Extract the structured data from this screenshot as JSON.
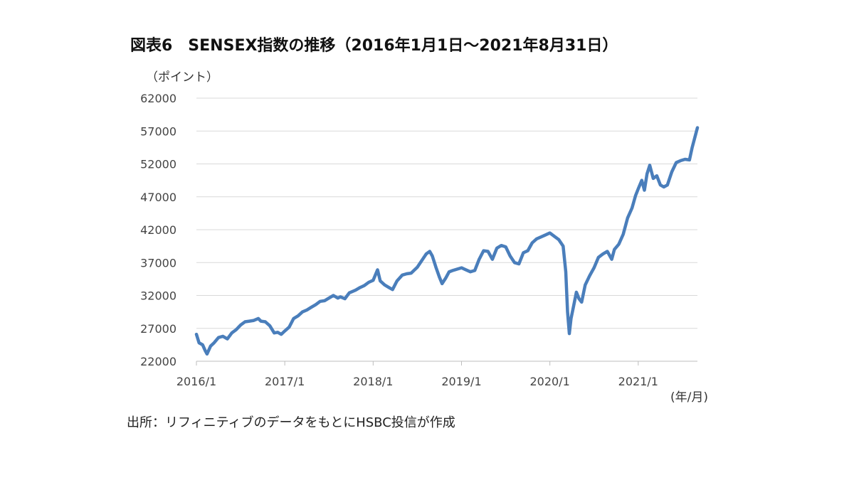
{
  "figure": {
    "title": "図表6　SENSEX指数の推移（2016年1月1日～2021年8月31日）",
    "unit_label": "（ポイント）",
    "x_unit_label": "(年/月)",
    "source": "出所：リフィニティブのデータをもとにHSBC投信が作成"
  },
  "chart_data": {
    "type": "line",
    "title": "SENSEX指数の推移（2016年1月1日～2021年8月31日）",
    "xlabel": "(年/月)",
    "ylabel": "（ポイント）",
    "ylim": [
      22000,
      62000
    ],
    "y_ticks": [
      22000,
      27000,
      32000,
      37000,
      42000,
      47000,
      52000,
      57000,
      62000
    ],
    "x_tick_labels": [
      "2016/1",
      "2017/1",
      "2018/1",
      "2019/1",
      "2020/1",
      "2021/1"
    ],
    "x_tick_values": [
      2016.0,
      2017.0,
      2018.0,
      2019.0,
      2020.0,
      2021.0
    ],
    "xlim": [
      2016.0,
      2021.67
    ],
    "grid": "horizontal",
    "line_color": "#4a7ebb",
    "series": [
      {
        "values": [
          [
            2016.0,
            26100
          ],
          [
            2016.03,
            24800
          ],
          [
            2016.07,
            24500
          ],
          [
            2016.1,
            23600
          ],
          [
            2016.12,
            23100
          ],
          [
            2016.16,
            24300
          ],
          [
            2016.2,
            24800
          ],
          [
            2016.25,
            25600
          ],
          [
            2016.3,
            25800
          ],
          [
            2016.35,
            25400
          ],
          [
            2016.4,
            26300
          ],
          [
            2016.45,
            26800
          ],
          [
            2016.5,
            27500
          ],
          [
            2016.55,
            28000
          ],
          [
            2016.6,
            28100
          ],
          [
            2016.65,
            28200
          ],
          [
            2016.7,
            28500
          ],
          [
            2016.73,
            28100
          ],
          [
            2016.78,
            28000
          ],
          [
            2016.83,
            27400
          ],
          [
            2016.88,
            26300
          ],
          [
            2016.92,
            26400
          ],
          [
            2016.96,
            26100
          ],
          [
            2017.0,
            26600
          ],
          [
            2017.05,
            27200
          ],
          [
            2017.1,
            28500
          ],
          [
            2017.15,
            28900
          ],
          [
            2017.2,
            29500
          ],
          [
            2017.25,
            29800
          ],
          [
            2017.3,
            30200
          ],
          [
            2017.35,
            30600
          ],
          [
            2017.4,
            31100
          ],
          [
            2017.45,
            31200
          ],
          [
            2017.5,
            31600
          ],
          [
            2017.55,
            32000
          ],
          [
            2017.6,
            31600
          ],
          [
            2017.63,
            31800
          ],
          [
            2017.68,
            31500
          ],
          [
            2017.73,
            32400
          ],
          [
            2017.8,
            32800
          ],
          [
            2017.85,
            33200
          ],
          [
            2017.9,
            33500
          ],
          [
            2017.95,
            34000
          ],
          [
            2018.0,
            34300
          ],
          [
            2018.05,
            35900
          ],
          [
            2018.08,
            34200
          ],
          [
            2018.13,
            33600
          ],
          [
            2018.18,
            33200
          ],
          [
            2018.22,
            32900
          ],
          [
            2018.27,
            34200
          ],
          [
            2018.33,
            35100
          ],
          [
            2018.38,
            35300
          ],
          [
            2018.43,
            35400
          ],
          [
            2018.5,
            36300
          ],
          [
            2018.55,
            37300
          ],
          [
            2018.6,
            38300
          ],
          [
            2018.64,
            38700
          ],
          [
            2018.67,
            38000
          ],
          [
            2018.71,
            36300
          ],
          [
            2018.75,
            34800
          ],
          [
            2018.78,
            33800
          ],
          [
            2018.82,
            34600
          ],
          [
            2018.86,
            35600
          ],
          [
            2018.9,
            35800
          ],
          [
            2018.95,
            36000
          ],
          [
            2019.0,
            36200
          ],
          [
            2019.05,
            35900
          ],
          [
            2019.1,
            35600
          ],
          [
            2019.15,
            35800
          ],
          [
            2019.2,
            37500
          ],
          [
            2019.25,
            38800
          ],
          [
            2019.3,
            38700
          ],
          [
            2019.35,
            37500
          ],
          [
            2019.4,
            39200
          ],
          [
            2019.45,
            39600
          ],
          [
            2019.5,
            39400
          ],
          [
            2019.55,
            38000
          ],
          [
            2019.6,
            37000
          ],
          [
            2019.65,
            36800
          ],
          [
            2019.7,
            38500
          ],
          [
            2019.75,
            38800
          ],
          [
            2019.8,
            40000
          ],
          [
            2019.85,
            40600
          ],
          [
            2019.9,
            40900
          ],
          [
            2019.95,
            41200
          ],
          [
            2020.0,
            41500
          ],
          [
            2020.05,
            41000
          ],
          [
            2020.1,
            40500
          ],
          [
            2020.15,
            39500
          ],
          [
            2020.18,
            35600
          ],
          [
            2020.2,
            29500
          ],
          [
            2020.22,
            26200
          ],
          [
            2020.24,
            28500
          ],
          [
            2020.27,
            30500
          ],
          [
            2020.3,
            32500
          ],
          [
            2020.33,
            31500
          ],
          [
            2020.36,
            31000
          ],
          [
            2020.4,
            33600
          ],
          [
            2020.45,
            35000
          ],
          [
            2020.5,
            36200
          ],
          [
            2020.55,
            37800
          ],
          [
            2020.6,
            38300
          ],
          [
            2020.65,
            38700
          ],
          [
            2020.7,
            37500
          ],
          [
            2020.73,
            39000
          ],
          [
            2020.78,
            39800
          ],
          [
            2020.83,
            41300
          ],
          [
            2020.88,
            43800
          ],
          [
            2020.93,
            45300
          ],
          [
            2020.97,
            47200
          ],
          [
            2021.0,
            48200
          ],
          [
            2021.04,
            49500
          ],
          [
            2021.07,
            48000
          ],
          [
            2021.1,
            50500
          ],
          [
            2021.13,
            51800
          ],
          [
            2021.17,
            49800
          ],
          [
            2021.21,
            50200
          ],
          [
            2021.25,
            48800
          ],
          [
            2021.29,
            48500
          ],
          [
            2021.33,
            48800
          ],
          [
            2021.38,
            50800
          ],
          [
            2021.43,
            52200
          ],
          [
            2021.48,
            52500
          ],
          [
            2021.53,
            52700
          ],
          [
            2021.58,
            52600
          ],
          [
            2021.61,
            54500
          ],
          [
            2021.64,
            56000
          ],
          [
            2021.67,
            57500
          ]
        ]
      }
    ]
  }
}
